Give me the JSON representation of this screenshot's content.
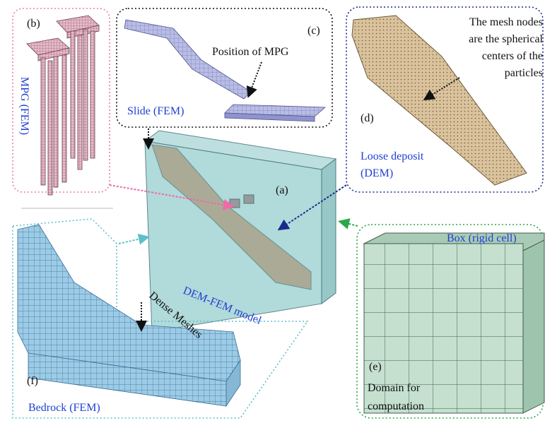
{
  "panels": {
    "a": {
      "label": "(a)",
      "caption": "DEM-FEM model"
    },
    "b": {
      "label": "(b)",
      "caption": "MPG (FEM)"
    },
    "c": {
      "label": "(c)",
      "caption": "Slide (FEM)",
      "note": "Position of MPG"
    },
    "d": {
      "label": "(d)",
      "caption": [
        "Loose deposit",
        "(DEM)"
      ],
      "note": [
        "The mesh nodes",
        "are the spherical",
        "centers of the",
        "particles"
      ]
    },
    "e": {
      "label": "(e)",
      "caption": "Box (rigid cell)",
      "note": [
        "Domain for",
        "computation"
      ]
    },
    "f": {
      "label": "(f)",
      "caption": "Bedrock (FEM)",
      "note": "Dense Meshes"
    }
  }
}
